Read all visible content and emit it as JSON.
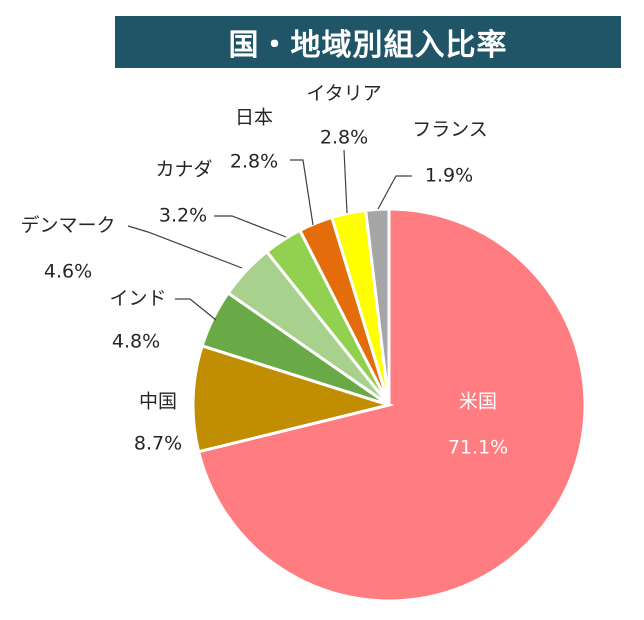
{
  "colors": {
    "title_bg": "#1f5566"
  },
  "chart_data": {
    "type": "pie",
    "title": "国・地域別組入比率",
    "slices": [
      {
        "name": "米国",
        "value": 71.1,
        "label": "71.1%",
        "color": "#ff7c80"
      },
      {
        "name": "中国",
        "value": 8.7,
        "label": "8.7%",
        "color": "#c08e00"
      },
      {
        "name": "インド",
        "value": 4.8,
        "label": "4.8%",
        "color": "#6aaa46"
      },
      {
        "name": "デンマーク",
        "value": 4.6,
        "label": "4.6%",
        "color": "#a9d18e"
      },
      {
        "name": "カナダ",
        "value": 3.2,
        "label": "3.2%",
        "color": "#92d050"
      },
      {
        "name": "日本",
        "value": 2.8,
        "label": "2.8%",
        "color": "#e46c0a"
      },
      {
        "name": "イタリア",
        "value": 2.8,
        "label": "2.8%",
        "color": "#ffff00"
      },
      {
        "name": "フランス",
        "value": 1.9,
        "label": "1.9%",
        "color": "#a6a6a6"
      }
    ]
  }
}
